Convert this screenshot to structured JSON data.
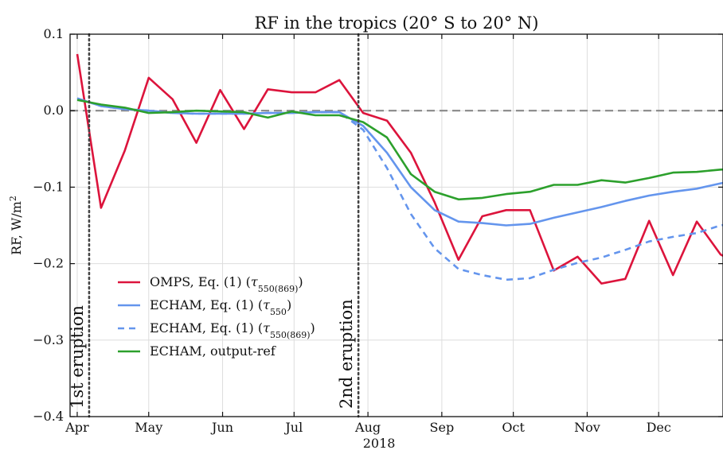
{
  "chart_data": {
    "type": "line",
    "title": "RF in the tropics (20° S to 20° N)",
    "ylabel": "RF, W/m",
    "ylabel_sup": "2",
    "xlabel": "2018",
    "x_tick_labels": [
      "Apr",
      "May",
      "Jun",
      "Jul",
      "Aug",
      "Sep",
      "Oct",
      "Nov",
      "Dec"
    ],
    "x_range_days": [
      -3,
      271
    ],
    "ylim": [
      -0.4,
      0.1
    ],
    "y_ticks": [
      0.1,
      0.0,
      -0.1,
      -0.2,
      -0.3,
      -0.4
    ],
    "y_tick_labels": [
      "0.1",
      "0.0",
      "−0.1",
      "−0.2",
      "−0.3",
      "−0.4"
    ],
    "reference_line": {
      "y": 0.0,
      "style": "dashed",
      "color": "#888888"
    },
    "grid": true,
    "legend": {
      "placement": "lower-left",
      "entries": [
        {
          "prefix": "OMPS, Eq. (1) (",
          "tau": "τ",
          "sub": "550(869)",
          "suffix": ")"
        },
        {
          "prefix": "ECHAM, Eq. (1) (",
          "tau": "τ",
          "sub": "550",
          "suffix": ")"
        },
        {
          "prefix": "ECHAM, Eq. (1) (",
          "tau": "τ",
          "sub": "550(869)",
          "suffix": ")"
        },
        {
          "prefix": "ECHAM, output-ref",
          "tau": "",
          "sub": "",
          "suffix": ""
        }
      ]
    },
    "eruptions": [
      {
        "day": 5,
        "label": "1st eruption"
      },
      {
        "day": 118,
        "label": "2nd eruption"
      }
    ],
    "series": [
      {
        "color": "#dc143c",
        "dash": "none",
        "x": [
          0,
          10,
          20,
          30,
          40,
          50,
          60,
          70,
          80,
          90,
          100,
          110,
          120,
          130,
          140,
          150,
          160,
          170,
          180,
          190,
          200,
          210,
          220,
          230,
          240,
          250,
          260,
          270,
          280
        ],
        "y": [
          0.074,
          -0.127,
          -0.052,
          0.043,
          0.015,
          -0.042,
          0.027,
          -0.024,
          0.028,
          0.024,
          0.024,
          0.04,
          -0.003,
          -0.013,
          -0.055,
          -0.12,
          -0.195,
          -0.138,
          -0.13,
          -0.13,
          -0.209,
          -0.191,
          -0.226,
          -0.22,
          -0.144,
          -0.215,
          -0.145,
          -0.188,
          -0.205
        ]
      },
      {
        "color": "#6495ed",
        "dash": "none",
        "x": [
          0,
          10,
          20,
          30,
          40,
          50,
          60,
          70,
          80,
          90,
          100,
          110,
          120,
          130,
          140,
          150,
          160,
          170,
          180,
          190,
          200,
          210,
          220,
          230,
          240,
          250,
          260,
          270,
          280
        ],
        "y": [
          0.016,
          0.006,
          0.002,
          0.0,
          -0.003,
          -0.004,
          -0.004,
          -0.004,
          -0.003,
          -0.003,
          -0.002,
          -0.002,
          -0.02,
          -0.055,
          -0.1,
          -0.13,
          -0.145,
          -0.147,
          -0.15,
          -0.148,
          -0.14,
          -0.133,
          -0.126,
          -0.118,
          -0.111,
          -0.106,
          -0.102,
          -0.095,
          -0.09
        ]
      },
      {
        "color": "#6495ed",
        "dash": "8,6",
        "x": [
          0,
          10,
          20,
          30,
          40,
          50,
          60,
          70,
          80,
          90,
          100,
          110,
          120,
          130,
          140,
          150,
          160,
          170,
          180,
          190,
          200,
          210,
          220,
          230,
          240,
          250,
          260,
          270,
          280
        ],
        "y": [
          0.016,
          0.006,
          0.002,
          0.0,
          -0.003,
          -0.004,
          -0.004,
          -0.004,
          -0.003,
          -0.003,
          -0.002,
          -0.002,
          -0.025,
          -0.075,
          -0.135,
          -0.18,
          -0.207,
          -0.215,
          -0.221,
          -0.219,
          -0.208,
          -0.199,
          -0.192,
          -0.182,
          -0.171,
          -0.165,
          -0.16,
          -0.15,
          -0.145
        ]
      },
      {
        "color": "#2ca02c",
        "dash": "none",
        "x": [
          0,
          10,
          20,
          30,
          40,
          50,
          60,
          70,
          80,
          90,
          100,
          110,
          120,
          130,
          140,
          150,
          160,
          170,
          180,
          190,
          200,
          210,
          220,
          230,
          240,
          250,
          260,
          270,
          280
        ],
        "y": [
          0.014,
          0.008,
          0.004,
          -0.003,
          -0.002,
          0.0,
          -0.001,
          -0.002,
          -0.009,
          -0.001,
          -0.006,
          -0.006,
          -0.015,
          -0.035,
          -0.083,
          -0.106,
          -0.116,
          -0.114,
          -0.109,
          -0.106,
          -0.097,
          -0.097,
          -0.091,
          -0.094,
          -0.088,
          -0.081,
          -0.08,
          -0.077,
          -0.076
        ]
      }
    ]
  }
}
